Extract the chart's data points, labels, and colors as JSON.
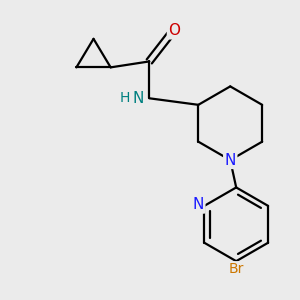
{
  "background_color": "#ebebeb",
  "bond_color": "#000000",
  "atom_colors": {
    "N_pip": "#1a1aff",
    "N_py": "#1a1aff",
    "N_amide": "#008080",
    "O": "#cc0000",
    "Br": "#cc7700",
    "C": "#000000"
  },
  "line_width": 1.6,
  "dbo": 0.055,
  "figsize": [
    3.0,
    3.0
  ],
  "dpi": 100,
  "xlim": [
    -2.8,
    2.0
  ],
  "ylim": [
    -2.2,
    2.8
  ]
}
